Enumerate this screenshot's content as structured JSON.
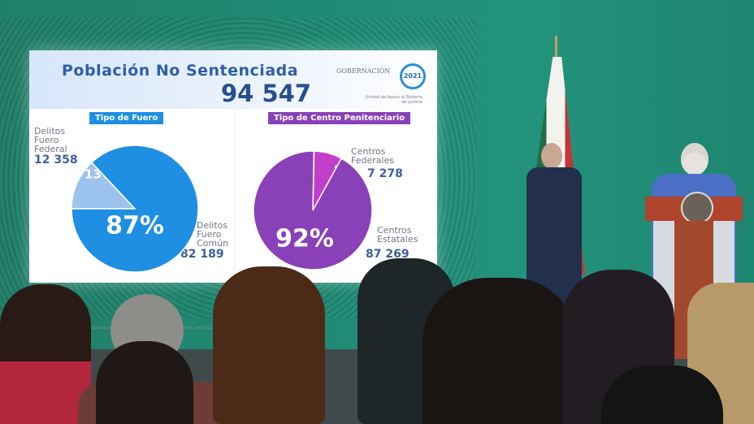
{
  "screen": {
    "title": "Población No Sentenciada",
    "total": "94 547",
    "logo_text": "GOBERNACIÓN",
    "seal_text": "2021",
    "unit_text": "Unidad de Apoyo al Sistema de Justicia",
    "source": "Cuaderno Mensual de Información Estadística Penitenciaria Nacional (CNIEPN), abril 2021"
  },
  "chart_data": [
    {
      "type": "pie",
      "title": "Tipo de Fuero",
      "slices": [
        {
          "label": "Delitos Fuero Federal",
          "value": 12358,
          "percent_label": "13%",
          "color": "#9cc3ee"
        },
        {
          "label": "Delitos Fuero Común",
          "value": 82189,
          "percent_label": "87%",
          "color": "#1e8fe3"
        }
      ],
      "title_color": "#1e8fe3"
    },
    {
      "type": "pie",
      "title": "Tipo de Centro Penitenciario",
      "slices": [
        {
          "label": "Centros Federales",
          "value": 7278,
          "percent_label": "8%",
          "color": "#c23fcb"
        },
        {
          "label": "Centros Estatales",
          "value": 87269,
          "percent_label": "92%",
          "color": "#8a40b8"
        }
      ],
      "title_color": "#8a40b8"
    }
  ],
  "labels": {
    "federal": [
      "Delitos",
      "Fuero",
      "Federal"
    ],
    "federal_value": "12 358",
    "comun": [
      "Delitos",
      "Fuero",
      "Común"
    ],
    "comun_value": "82 189",
    "cfed": [
      "Centros",
      "Federales"
    ],
    "cfed_value": "7 278",
    "cest": [
      "Centros",
      "Estatales"
    ],
    "cest_value": "87 269"
  }
}
